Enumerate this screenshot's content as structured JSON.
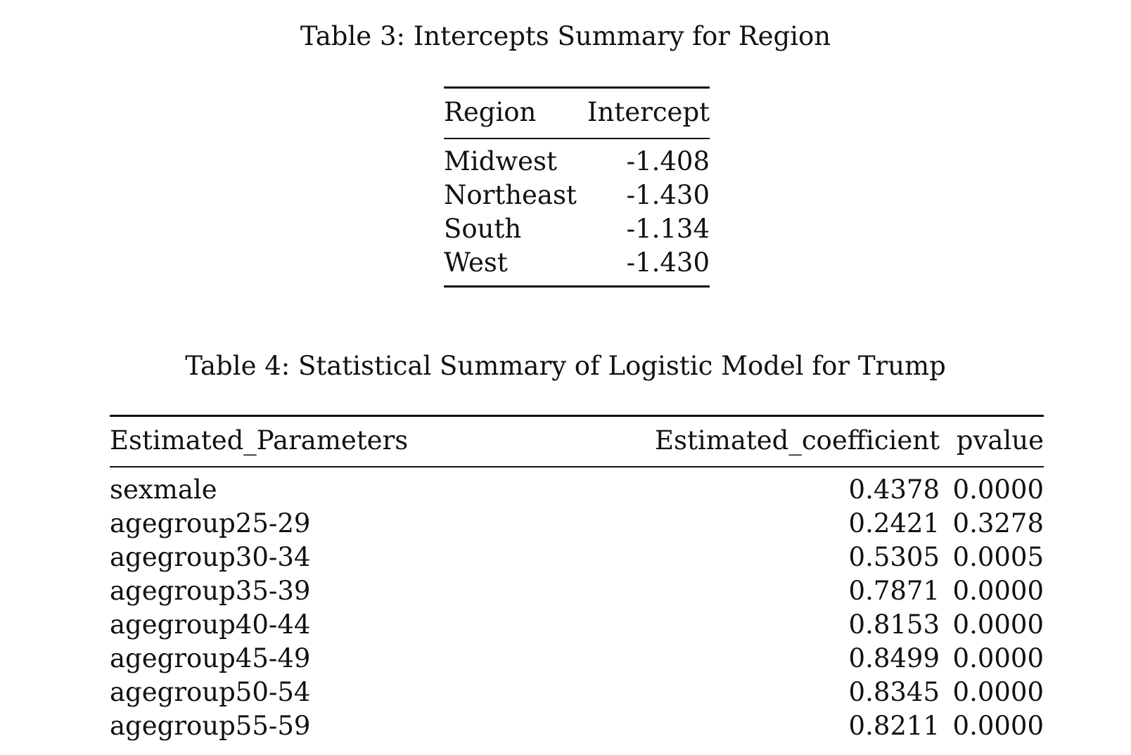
{
  "table3": {
    "caption": "Table 3: Intercepts Summary for Region",
    "headers": [
      "Region",
      "Intercept"
    ],
    "rows": [
      [
        "Midwest",
        "-1.408"
      ],
      [
        "Northeast",
        "-1.430"
      ],
      [
        "South",
        "-1.134"
      ],
      [
        "West",
        "-1.430"
      ]
    ]
  },
  "table4": {
    "caption": "Table 4: Statistical Summary of Logistic Model for Trump",
    "headers": [
      "Estimated_Parameters",
      "Estimated_coefficient",
      "pvalue"
    ],
    "rows": [
      [
        "sexmale",
        "0.4378",
        "0.0000"
      ],
      [
        "agegroup25-29",
        "0.2421",
        "0.3278"
      ],
      [
        "agegroup30-34",
        "0.5305",
        "0.0005"
      ],
      [
        "agegroup35-39",
        "0.7871",
        "0.0000"
      ],
      [
        "agegroup40-44",
        "0.8153",
        "0.0000"
      ],
      [
        "agegroup45-49",
        "0.8499",
        "0.0000"
      ],
      [
        "agegroup50-54",
        "0.8345",
        "0.0000"
      ],
      [
        "agegroup55-59",
        "0.8211",
        "0.0000"
      ]
    ]
  }
}
